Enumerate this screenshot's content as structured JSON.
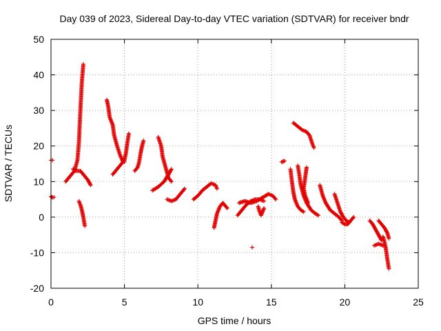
{
  "chart_data": {
    "type": "scatter",
    "title": "Day 039 of 2023, Sidereal Day-to-day VTEC variation (SDTVAR) for receiver bndr",
    "xlabel": "GPS time / hours",
    "ylabel": "SDTVAR / TECUs",
    "xlim": [
      0,
      25
    ],
    "ylim": [
      -20,
      50
    ],
    "xticks": [
      0,
      5,
      10,
      15,
      20,
      25
    ],
    "yticks": [
      -20,
      -10,
      0,
      10,
      20,
      30,
      40,
      50
    ],
    "grid": true,
    "marker": "+",
    "color": "#e00000",
    "series": [
      {
        "name": "t00",
        "points": [
          [
            0.0,
            16.0
          ],
          [
            0.1,
            16.0
          ]
        ]
      },
      {
        "name": "t01",
        "points": [
          [
            0.0,
            5.8
          ],
          [
            0.1,
            5.5
          ],
          [
            0.2,
            5.6
          ]
        ]
      },
      {
        "name": "t02",
        "points": [
          [
            1.0,
            10.0
          ],
          [
            1.2,
            11.0
          ],
          [
            1.4,
            12.0
          ],
          [
            1.6,
            13.0
          ],
          [
            1.8,
            16.0
          ],
          [
            1.9,
            21.0
          ],
          [
            2.0,
            30.0
          ],
          [
            2.1,
            38.0
          ],
          [
            2.2,
            43.0
          ]
        ]
      },
      {
        "name": "t03",
        "points": [
          [
            1.5,
            13.5
          ],
          [
            1.7,
            13.0
          ],
          [
            2.0,
            13.0
          ],
          [
            2.2,
            12.0
          ],
          [
            2.5,
            10.5
          ],
          [
            2.7,
            9.0
          ]
        ]
      },
      {
        "name": "t04",
        "points": [
          [
            1.9,
            4.5
          ],
          [
            2.0,
            3.5
          ],
          [
            2.1,
            2.0
          ],
          [
            2.2,
            0.0
          ],
          [
            2.3,
            -2.5
          ]
        ]
      },
      {
        "name": "t05",
        "points": [
          [
            3.8,
            33.0
          ],
          [
            3.9,
            31.0
          ],
          [
            4.0,
            28.0
          ],
          [
            4.2,
            26.0
          ],
          [
            4.3,
            23.0
          ],
          [
            4.5,
            20.0
          ],
          [
            4.7,
            17.5
          ],
          [
            4.9,
            15.5
          ],
          [
            5.0,
            15.5
          ]
        ]
      },
      {
        "name": "t06",
        "points": [
          [
            4.2,
            12.0
          ],
          [
            4.5,
            13.5
          ],
          [
            4.8,
            15.0
          ],
          [
            5.0,
            16.0
          ],
          [
            5.1,
            18.0
          ],
          [
            5.2,
            21.0
          ],
          [
            5.3,
            23.5
          ]
        ]
      },
      {
        "name": "t07",
        "points": [
          [
            5.7,
            13.0
          ],
          [
            5.9,
            14.0
          ],
          [
            6.0,
            15.5
          ],
          [
            6.1,
            18.0
          ],
          [
            6.2,
            20.0
          ],
          [
            6.3,
            21.5
          ]
        ]
      },
      {
        "name": "t08",
        "points": [
          [
            6.9,
            7.5
          ],
          [
            7.3,
            8.5
          ],
          [
            7.7,
            10.0
          ],
          [
            8.0,
            12.0
          ],
          [
            8.2,
            13.5
          ]
        ]
      },
      {
        "name": "t09",
        "points": [
          [
            7.3,
            22.5
          ],
          [
            7.5,
            20.0
          ],
          [
            7.6,
            17.0
          ],
          [
            7.8,
            14.0
          ],
          [
            8.0,
            11.0
          ],
          [
            8.2,
            10.0
          ]
        ]
      },
      {
        "name": "t10",
        "points": [
          [
            7.9,
            5.0
          ],
          [
            8.2,
            4.5
          ],
          [
            8.5,
            5.0
          ],
          [
            8.8,
            6.5
          ],
          [
            9.1,
            8.0
          ]
        ]
      },
      {
        "name": "t11",
        "points": [
          [
            9.7,
            5.0
          ],
          [
            10.0,
            6.0
          ],
          [
            10.3,
            7.5
          ],
          [
            10.6,
            8.5
          ],
          [
            10.9,
            9.5
          ],
          [
            11.2,
            9.0
          ],
          [
            11.3,
            8.0
          ]
        ]
      },
      {
        "name": "t12",
        "points": [
          [
            11.1,
            -3.0
          ],
          [
            11.2,
            -1.0
          ],
          [
            11.3,
            1.0
          ],
          [
            11.5,
            3.0
          ],
          [
            11.7,
            4.0
          ],
          [
            12.0,
            2.5
          ]
        ]
      },
      {
        "name": "t13",
        "points": [
          [
            12.7,
            0.5
          ],
          [
            13.0,
            2.0
          ],
          [
            13.3,
            3.5
          ],
          [
            13.6,
            4.5
          ],
          [
            13.9,
            5.0
          ],
          [
            14.2,
            5.0
          ],
          [
            14.5,
            4.5
          ]
        ]
      },
      {
        "name": "t14",
        "points": [
          [
            12.8,
            4.0
          ],
          [
            13.2,
            4.5
          ],
          [
            13.6,
            4.0
          ],
          [
            14.0,
            4.5
          ],
          [
            14.4,
            5.5
          ],
          [
            14.8,
            6.5
          ],
          [
            15.1,
            6.0
          ],
          [
            15.3,
            5.0
          ]
        ]
      },
      {
        "name": "t15",
        "points": [
          [
            14.1,
            3.0
          ],
          [
            14.2,
            1.5
          ],
          [
            14.3,
            0.5
          ],
          [
            14.5,
            2.5
          ]
        ]
      },
      {
        "name": "t16",
        "points": [
          [
            13.7,
            -8.5
          ]
        ]
      },
      {
        "name": "t17",
        "points": [
          [
            15.7,
            15.5
          ],
          [
            15.9,
            15.8
          ]
        ]
      },
      {
        "name": "t18",
        "points": [
          [
            16.3,
            13.5
          ],
          [
            16.4,
            10.0
          ],
          [
            16.5,
            7.0
          ],
          [
            16.6,
            5.0
          ],
          [
            16.8,
            3.0
          ],
          [
            17.0,
            2.0
          ],
          [
            17.2,
            1.5
          ]
        ]
      },
      {
        "name": "t19",
        "points": [
          [
            16.5,
            26.5
          ],
          [
            16.8,
            25.5
          ],
          [
            17.1,
            24.5
          ],
          [
            17.4,
            24.0
          ],
          [
            17.6,
            23.0
          ],
          [
            17.8,
            20.5
          ],
          [
            17.9,
            19.5
          ]
        ]
      },
      {
        "name": "t20",
        "points": [
          [
            16.8,
            14.5
          ],
          [
            16.9,
            12.0
          ],
          [
            17.0,
            9.0
          ],
          [
            17.2,
            6.0
          ],
          [
            17.4,
            4.0
          ],
          [
            17.7,
            2.0
          ],
          [
            18.0,
            1.0
          ],
          [
            18.2,
            0.5
          ]
        ]
      },
      {
        "name": "t21",
        "points": [
          [
            17.4,
            14.0
          ],
          [
            17.3,
            11.0
          ],
          [
            17.2,
            8.0
          ],
          [
            17.3,
            6.0
          ],
          [
            17.5,
            4.0
          ]
        ]
      },
      {
        "name": "t22",
        "points": [
          [
            18.3,
            9.0
          ],
          [
            18.5,
            6.0
          ],
          [
            18.7,
            4.0
          ],
          [
            19.0,
            2.0
          ],
          [
            19.3,
            1.0
          ],
          [
            19.6,
            0.0
          ],
          [
            19.8,
            -1.0
          ]
        ]
      },
      {
        "name": "t23",
        "points": [
          [
            19.3,
            6.5
          ],
          [
            19.5,
            4.0
          ],
          [
            19.7,
            1.5
          ],
          [
            19.9,
            0.0
          ],
          [
            20.1,
            -1.0
          ],
          [
            20.3,
            -1.5
          ]
        ]
      },
      {
        "name": "t24",
        "points": [
          [
            19.8,
            -1.5
          ],
          [
            20.0,
            -2.0
          ],
          [
            20.2,
            -2.0
          ],
          [
            20.5,
            -0.5
          ],
          [
            20.6,
            0.0
          ]
        ]
      },
      {
        "name": "t25",
        "points": [
          [
            21.7,
            -1.0
          ],
          [
            21.9,
            -2.0
          ],
          [
            22.1,
            -3.5
          ],
          [
            22.3,
            -5.0
          ],
          [
            22.5,
            -6.5
          ]
        ]
      },
      {
        "name": "t26",
        "points": [
          [
            22.3,
            -1.0
          ],
          [
            22.5,
            -2.0
          ],
          [
            22.7,
            -3.0
          ],
          [
            22.9,
            -4.5
          ],
          [
            23.0,
            -6.0
          ]
        ]
      },
      {
        "name": "t27",
        "points": [
          [
            22.0,
            -8.0
          ],
          [
            22.3,
            -7.5
          ],
          [
            22.6,
            -8.0
          ]
        ]
      },
      {
        "name": "t28",
        "points": [
          [
            22.6,
            -5.5
          ],
          [
            22.7,
            -7.0
          ],
          [
            22.8,
            -9.0
          ],
          [
            22.9,
            -12.0
          ],
          [
            23.0,
            -14.5
          ]
        ]
      }
    ]
  }
}
